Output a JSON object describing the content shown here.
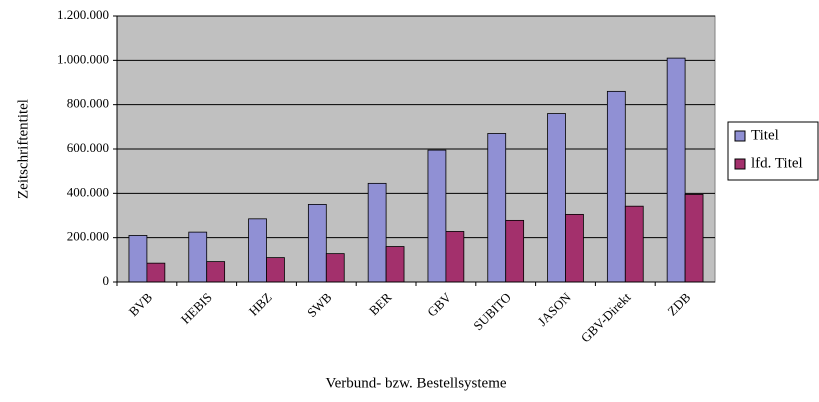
{
  "chart_data": {
    "type": "bar",
    "x_label": "Verbund- bzw. Bestellsysteme",
    "y_label": "Zeitschriftentitel",
    "categories": [
      "BVB",
      "HEBIS",
      "HBZ",
      "SWB",
      "BER",
      "GBV",
      "SUBITO",
      "JASON",
      "GBV-Direkt",
      "ZDB"
    ],
    "series": [
      {
        "name": "Titel",
        "color": "#9090d4",
        "values": [
          210000,
          225000,
          285000,
          350000,
          445000,
          595000,
          670000,
          760000,
          860000,
          1010000
        ]
      },
      {
        "name": "lfd. Titel",
        "color": "#a3306c",
        "values": [
          85000,
          92000,
          110000,
          128000,
          160000,
          228000,
          278000,
          305000,
          342000,
          395000
        ]
      }
    ],
    "ylim": [
      0,
      1200000
    ],
    "yticks": [
      0,
      {
        "value": 200000,
        "label": "200.000"
      },
      {
        "value": 400000,
        "label": "400.000"
      },
      {
        "value": 600000,
        "label": "600.000"
      },
      {
        "value": 800000,
        "label": "800.000"
      },
      {
        "value": 1000000,
        "label": "1.000.000"
      },
      {
        "value": 1200000,
        "label": "1.200.000"
      }
    ],
    "grid": true,
    "legend": "right"
  }
}
